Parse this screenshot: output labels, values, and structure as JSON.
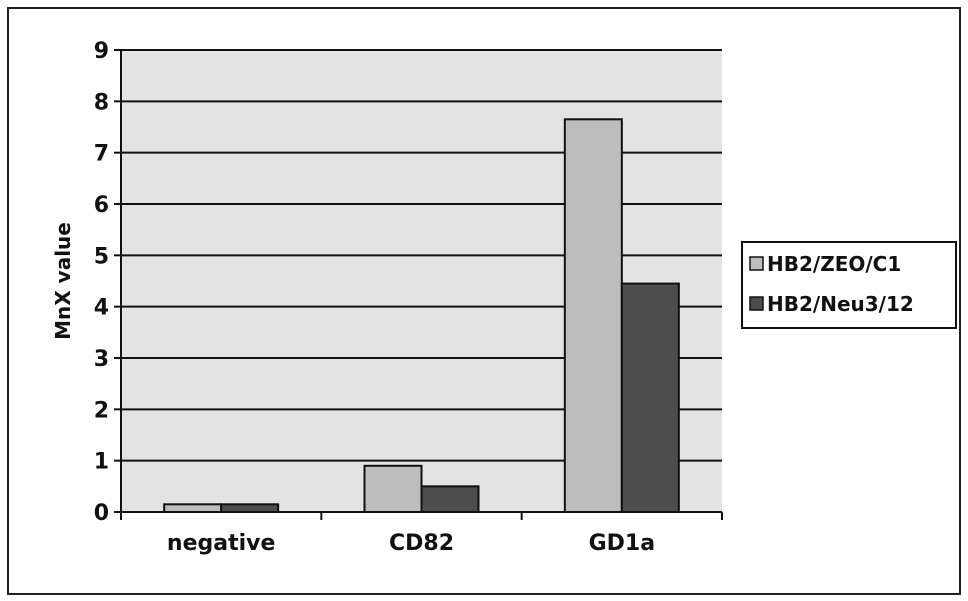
{
  "chart_data": {
    "type": "bar",
    "title": "",
    "xlabel": "",
    "ylabel": "MnX value",
    "ylim": [
      0,
      9
    ],
    "yticks": [
      0,
      1,
      2,
      3,
      4,
      5,
      6,
      7,
      8,
      9
    ],
    "categories": [
      "negative",
      "CD82",
      "GD1a"
    ],
    "series": [
      {
        "name": "HB2/ZEO/C1",
        "values": [
          0.15,
          0.9,
          7.65
        ],
        "color": "#bdbdbd"
      },
      {
        "name": "HB2/Neu3/12",
        "values": [
          0.15,
          0.5,
          4.45
        ],
        "color": "#4d4d4d"
      }
    ],
    "grid": true,
    "plot_background": "#e3e3e3",
    "legend_position": "right"
  }
}
